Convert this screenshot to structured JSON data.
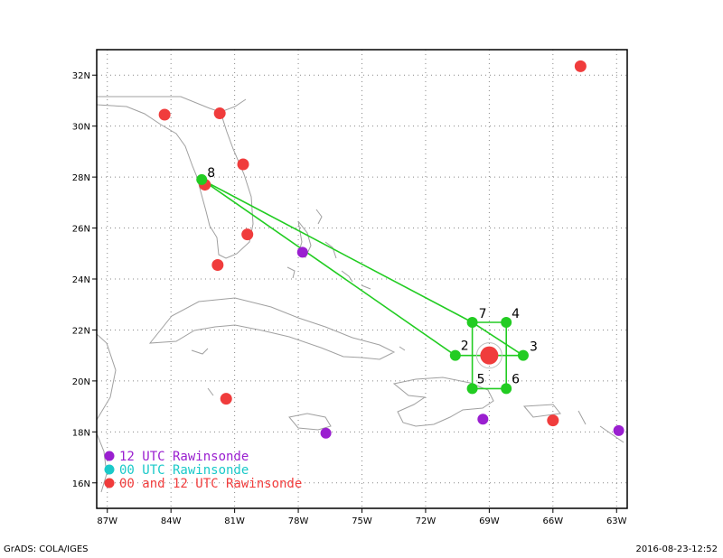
{
  "map": {
    "lon_range": [
      -87.5,
      -62.5
    ],
    "lat_range": [
      15,
      33
    ],
    "x_ticks": [
      {
        "lon": -87,
        "label": "87W"
      },
      {
        "lon": -84,
        "label": "84W"
      },
      {
        "lon": -81,
        "label": "81W"
      },
      {
        "lon": -78,
        "label": "78W"
      },
      {
        "lon": -75,
        "label": "75W"
      },
      {
        "lon": -72,
        "label": "72W"
      },
      {
        "lon": -69,
        "label": "69W"
      },
      {
        "lon": -66,
        "label": "66W"
      },
      {
        "lon": -63,
        "label": "63W"
      }
    ],
    "y_ticks": [
      {
        "lat": 16,
        "label": "16N"
      },
      {
        "lat": 18,
        "label": "18N"
      },
      {
        "lat": 20,
        "label": "20N"
      },
      {
        "lat": 22,
        "label": "22N"
      },
      {
        "lat": 24,
        "label": "24N"
      },
      {
        "lat": 26,
        "label": "26N"
      },
      {
        "lat": 28,
        "label": "28N"
      },
      {
        "lat": 30,
        "label": "30N"
      },
      {
        "lat": 32,
        "label": "32N"
      }
    ],
    "grid": "dotted",
    "colors": {
      "rawinsonde_12": "#9a1fd0",
      "rawinsonde_00": "#1bc9c9",
      "rawinsonde_both": "#f03c3c",
      "track": "#22cc22",
      "coast": "#a0a0a0"
    }
  },
  "stations": {
    "utc12": [
      {
        "lon": -77.8,
        "lat": 25.05
      },
      {
        "lon": -69.3,
        "lat": 18.5
      },
      {
        "lon": -62.9,
        "lat": 18.05
      },
      {
        "lon": -76.7,
        "lat": 17.95
      }
    ],
    "both": [
      {
        "lon": -84.3,
        "lat": 30.45
      },
      {
        "lon": -81.7,
        "lat": 30.5
      },
      {
        "lon": -80.6,
        "lat": 28.5
      },
      {
        "lon": -82.4,
        "lat": 27.7
      },
      {
        "lon": -80.4,
        "lat": 25.75
      },
      {
        "lon": -81.8,
        "lat": 24.55
      },
      {
        "lon": -81.4,
        "lat": 19.3
      },
      {
        "lon": -66.0,
        "lat": 18.45
      },
      {
        "lon": -64.7,
        "lat": 32.35
      },
      {
        "lon": -69.0,
        "lat": 21.0
      }
    ]
  },
  "flight_track": {
    "points": [
      {
        "id": "8",
        "lon": -82.55,
        "lat": 27.9
      },
      {
        "id": "7",
        "lon": -69.8,
        "lat": 22.3
      },
      {
        "id": "4",
        "lon": -68.2,
        "lat": 22.3
      },
      {
        "id": "3",
        "lon": -67.4,
        "lat": 21.0
      },
      {
        "id": "6",
        "lon": -68.2,
        "lat": 19.7
      },
      {
        "id": "5",
        "lon": -69.8,
        "lat": 19.7
      },
      {
        "id": "2",
        "lon": -70.6,
        "lat": 21.0
      }
    ],
    "path": [
      "8",
      "7",
      "5",
      "6",
      "4",
      "7",
      "3",
      "2",
      "8"
    ]
  },
  "legend": [
    {
      "label": "12 UTC Rawinsonde",
      "color": "#9a1fd0"
    },
    {
      "label": "00 UTC Rawinsonde",
      "color": "#1bc9c9"
    },
    {
      "label": "00 and 12 UTC Rawinsonde",
      "color": "#f03c3c"
    }
  ],
  "footer": {
    "left": "GrADS: COLA/IGES",
    "right": "2016-08-23-12:52"
  }
}
